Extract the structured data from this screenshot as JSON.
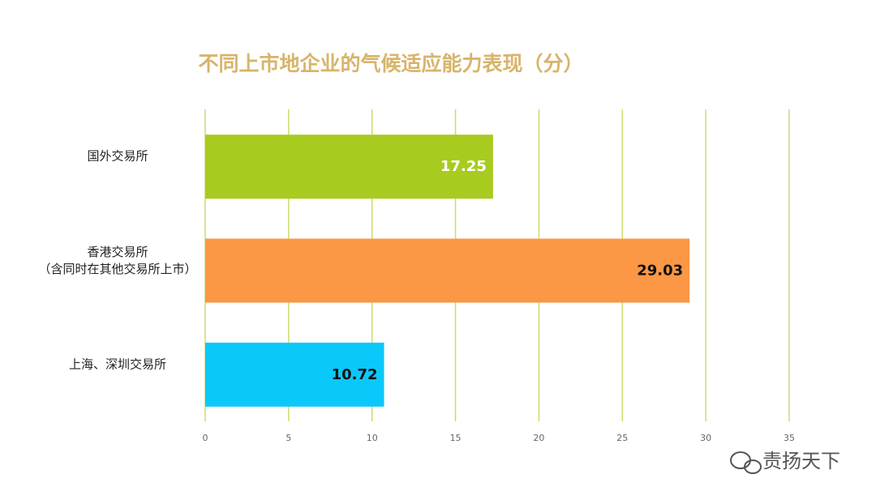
{
  "chart_data": {
    "type": "hbar",
    "title": "不同上市地企业的气候适应能力表现（分）",
    "categories": [
      "国外交易所",
      "香港交易所\n（含同时在其他交易所上市）",
      "上海、深圳交易所"
    ],
    "values": [
      17.25,
      29.03,
      10.72
    ],
    "colors": [
      "#a8cb1f",
      "#fb9745",
      "#0bc8fb"
    ],
    "label_colors": [
      "#ffffff",
      "#111111",
      "#111111"
    ],
    "xlim": [
      0,
      35
    ],
    "xticks": [
      0,
      5,
      10,
      15,
      20,
      25,
      30,
      35
    ],
    "grid": true,
    "grid_color": "#c9dc6e"
  },
  "watermark": "责扬天下"
}
